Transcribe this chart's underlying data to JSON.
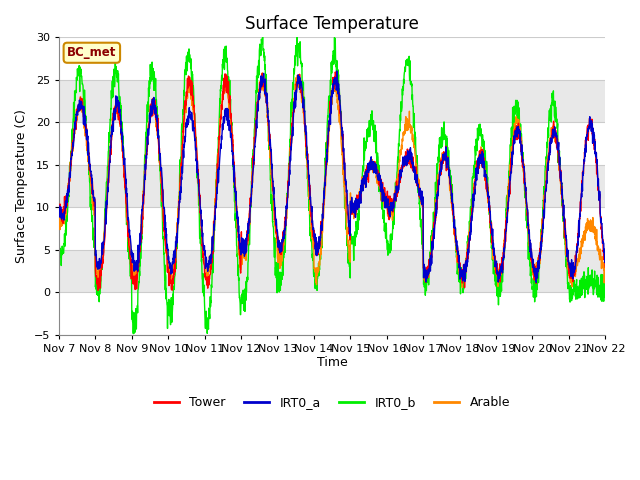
{
  "title": "Surface Temperature",
  "ylabel": "Surface Temperature (C)",
  "xlabel": "Time",
  "ylim": [
    -5,
    30
  ],
  "x_tick_labels": [
    "Nov 7",
    "Nov 8",
    "Nov 9",
    "Nov 10",
    "Nov 11",
    "Nov 12",
    "Nov 13",
    "Nov 14",
    "Nov 15",
    "Nov 16",
    "Nov 17",
    "Nov 18",
    "Nov 19",
    "Nov 20",
    "Nov 21",
    "Nov 22"
  ],
  "yticks": [
    -5,
    0,
    5,
    10,
    15,
    20,
    25,
    30
  ],
  "site_label": "BC_met",
  "figure_facecolor": "#ffffff",
  "plot_bg_color": "#ffffff",
  "line_colors": {
    "Tower": "#ff0000",
    "IRT0_a": "#0000cc",
    "IRT0_b": "#00ee00",
    "Arable": "#ff8800"
  },
  "line_width": 1.0,
  "title_fontsize": 12,
  "label_fontsize": 9,
  "tick_fontsize": 8
}
